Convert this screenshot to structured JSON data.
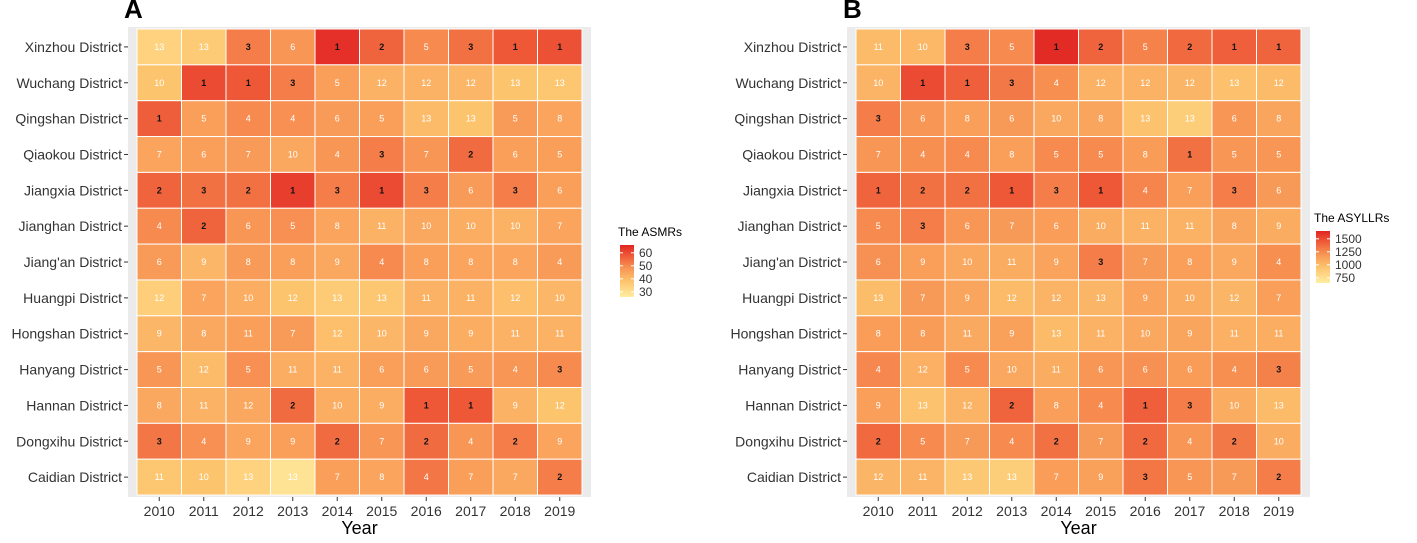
{
  "chart_data": [
    {
      "type": "heatmap",
      "panel_label": "A",
      "xlabel": "Year",
      "ylabel": "",
      "x": [
        "2010",
        "2011",
        "2012",
        "2013",
        "2014",
        "2015",
        "2016",
        "2017",
        "2018",
        "2019"
      ],
      "y": [
        "Xinzhou District",
        "Wuchang District",
        "Qingshan District",
        "Qiaokou District",
        "Jiangxia District",
        "Jianghan District",
        "Jiang'an District",
        "Huangpi District",
        "Hongshan District",
        "Hanyang District",
        "Hannan District",
        "Dongxihu District",
        "Caidian District"
      ],
      "legend_title": "The ASMRs",
      "legend_ticks": [
        "60",
        "50",
        "40",
        "30"
      ],
      "legend_tick_values": [
        60,
        50,
        40,
        30
      ],
      "value_range": [
        26,
        66
      ],
      "ranks": [
        [
          13,
          13,
          3,
          6,
          1,
          2,
          5,
          3,
          1,
          1
        ],
        [
          10,
          1,
          1,
          3,
          5,
          12,
          12,
          12,
          13,
          13
        ],
        [
          1,
          5,
          4,
          4,
          6,
          5,
          13,
          13,
          5,
          8
        ],
        [
          7,
          6,
          7,
          10,
          4,
          3,
          7,
          2,
          6,
          5
        ],
        [
          2,
          3,
          2,
          1,
          3,
          1,
          3,
          6,
          3,
          6
        ],
        [
          4,
          2,
          6,
          5,
          8,
          11,
          10,
          10,
          10,
          7
        ],
        [
          6,
          9,
          8,
          8,
          9,
          4,
          8,
          8,
          8,
          4
        ],
        [
          12,
          7,
          10,
          12,
          13,
          13,
          11,
          11,
          12,
          10
        ],
        [
          9,
          8,
          11,
          7,
          12,
          10,
          9,
          9,
          11,
          11
        ],
        [
          5,
          12,
          5,
          11,
          11,
          6,
          6,
          5,
          4,
          3
        ],
        [
          8,
          11,
          12,
          2,
          10,
          9,
          1,
          1,
          9,
          12
        ],
        [
          3,
          4,
          9,
          9,
          2,
          7,
          2,
          4,
          2,
          9
        ],
        [
          11,
          10,
          13,
          13,
          7,
          8,
          4,
          7,
          7,
          2
        ]
      ],
      "values": [
        [
          34,
          36,
          52,
          48,
          64,
          56,
          50,
          54,
          58,
          59
        ],
        [
          38,
          60,
          58,
          52,
          46,
          42,
          42,
          41,
          38,
          37
        ],
        [
          57,
          46,
          50,
          49,
          47,
          46,
          40,
          38,
          47,
          45
        ],
        [
          45,
          46,
          47,
          44,
          48,
          52,
          48,
          55,
          46,
          46
        ],
        [
          56,
          54,
          54,
          62,
          52,
          60,
          52,
          47,
          52,
          46
        ],
        [
          50,
          56,
          48,
          49,
          45,
          42,
          44,
          43,
          42,
          45
        ],
        [
          47,
          41,
          47,
          46,
          44,
          50,
          46,
          45,
          45,
          47
        ],
        [
          35,
          45,
          43,
          38,
          36,
          37,
          42,
          42,
          39,
          41
        ],
        [
          41,
          44,
          46,
          47,
          39,
          41,
          44,
          43,
          42,
          42
        ],
        [
          48,
          40,
          49,
          43,
          42,
          46,
          47,
          47,
          48,
          50
        ],
        [
          44,
          42,
          44,
          55,
          43,
          43,
          58,
          58,
          42,
          38
        ],
        [
          53,
          49,
          45,
          46,
          55,
          48,
          55,
          48,
          52,
          45
        ],
        [
          37,
          38,
          34,
          29,
          46,
          45,
          53,
          46,
          44,
          52
        ]
      ]
    },
    {
      "type": "heatmap",
      "panel_label": "B",
      "xlabel": "Year",
      "ylabel": "",
      "x": [
        "2010",
        "2011",
        "2012",
        "2013",
        "2014",
        "2015",
        "2016",
        "2017",
        "2018",
        "2019"
      ],
      "y": [
        "Xinzhou District",
        "Wuchang District",
        "Qingshan District",
        "Qiaokou District",
        "Jiangxia District",
        "Jianghan District",
        "Jiang'an District",
        "Huangpi District",
        "Hongshan District",
        "Hanyang District",
        "Hannan District",
        "Dongxihu District",
        "Caidian District"
      ],
      "legend_title": "The ASYLLRs",
      "legend_ticks": [
        "1500",
        "1250",
        "1000",
        "750"
      ],
      "legend_tick_values": [
        1500,
        1250,
        1000,
        750
      ],
      "value_range": [
        650,
        1650
      ],
      "ranks": [
        [
          11,
          10,
          3,
          5,
          1,
          2,
          5,
          2,
          1,
          1
        ],
        [
          10,
          1,
          1,
          3,
          4,
          12,
          12,
          12,
          13,
          12
        ],
        [
          3,
          6,
          8,
          6,
          10,
          8,
          13,
          13,
          6,
          8
        ],
        [
          7,
          4,
          4,
          8,
          5,
          5,
          8,
          1,
          5,
          5
        ],
        [
          1,
          2,
          2,
          1,
          3,
          1,
          4,
          7,
          3,
          6
        ],
        [
          5,
          3,
          6,
          7,
          6,
          10,
          11,
          11,
          8,
          9
        ],
        [
          6,
          9,
          10,
          11,
          9,
          3,
          7,
          8,
          9,
          4
        ],
        [
          13,
          7,
          9,
          12,
          12,
          13,
          9,
          10,
          12,
          7
        ],
        [
          8,
          8,
          11,
          9,
          13,
          11,
          10,
          9,
          11,
          11
        ],
        [
          4,
          12,
          5,
          10,
          11,
          6,
          6,
          6,
          4,
          3
        ],
        [
          9,
          13,
          12,
          2,
          8,
          4,
          1,
          3,
          10,
          13
        ],
        [
          2,
          5,
          7,
          4,
          2,
          7,
          2,
          4,
          2,
          10
        ],
        [
          12,
          11,
          13,
          13,
          7,
          9,
          3,
          5,
          7,
          2
        ]
      ],
      "values": [
        [
          1000,
          1020,
          1300,
          1250,
          1620,
          1400,
          1280,
          1380,
          1420,
          1400
        ],
        [
          1040,
          1500,
          1420,
          1320,
          1230,
          1050,
          1050,
          1030,
          970,
          1000
        ],
        [
          1300,
          1200,
          1150,
          1180,
          1100,
          1120,
          960,
          880,
          1200,
          1120
        ],
        [
          1200,
          1230,
          1250,
          1150,
          1250,
          1250,
          1170,
          1350,
          1200,
          1200
        ],
        [
          1400,
          1350,
          1350,
          1450,
          1300,
          1450,
          1270,
          1150,
          1300,
          1180
        ],
        [
          1250,
          1300,
          1200,
          1180,
          1160,
          1080,
          1050,
          1050,
          1120,
          1080
        ],
        [
          1220,
          1150,
          1100,
          1080,
          1130,
          1300,
          1180,
          1150,
          1100,
          1230
        ],
        [
          990,
          1180,
          1120,
          1000,
          1040,
          1030,
          1130,
          1080,
          1030,
          1150
        ],
        [
          1160,
          1170,
          1090,
          1140,
          1000,
          1050,
          1100,
          1120,
          1060,
          1070
        ],
        [
          1260,
          1060,
          1250,
          1100,
          1080,
          1200,
          1220,
          1170,
          1230,
          1290
        ],
        [
          1150,
          960,
          1040,
          1400,
          1150,
          1250,
          1420,
          1300,
          1080,
          1000
        ],
        [
          1380,
          1250,
          1180,
          1250,
          1350,
          1180,
          1380,
          1200,
          1320,
          1080
        ],
        [
          1030,
          1040,
          920,
          880,
          1160,
          1140,
          1330,
          1200,
          1180,
          1300
        ]
      ]
    }
  ]
}
